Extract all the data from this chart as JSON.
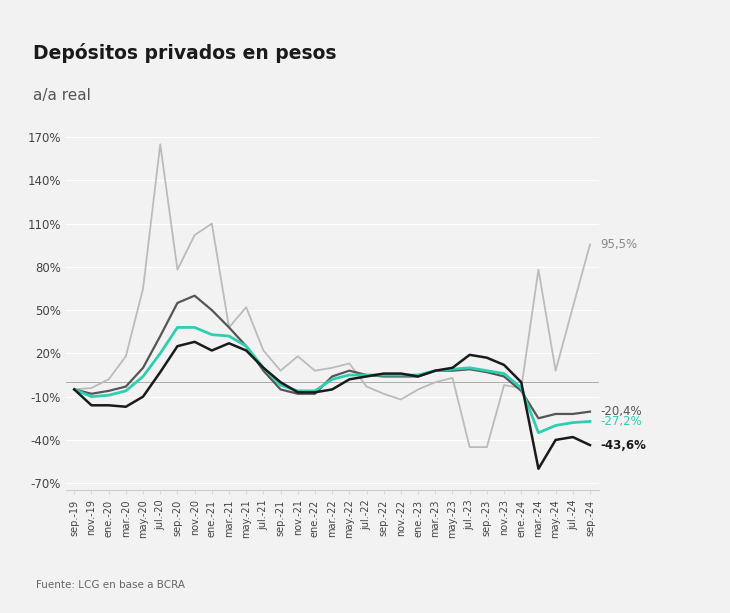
{
  "title": "Depósitos privados en pesos",
  "subtitle": "a/a real",
  "source": "Fuente: LCG en base a BCRA",
  "ylim": [
    -0.75,
    1.8
  ],
  "yticks": [
    -0.7,
    -0.4,
    -0.1,
    0.2,
    0.5,
    0.8,
    1.1,
    1.4,
    1.7
  ],
  "ytick_labels": [
    "-70%",
    "-40%",
    "-10%",
    "20%",
    "50%",
    "80%",
    "110%",
    "140%",
    "170%"
  ],
  "colors": {
    "plazo_fijo": "#1a1a1a",
    "a_la_vista": "#555555",
    "total": "#2ecfb1",
    "otros": "#bbbbbb"
  },
  "end_labels": {
    "a_la_vista": "-20,4%",
    "total": "-27,2%",
    "plazo_fijo": "-43,6%",
    "otros": "95,5%"
  },
  "x_labels": [
    "sep.-19",
    "nov.-19",
    "ene.-20",
    "mar.-20",
    "may.-20",
    "jul.-20",
    "sep.-20",
    "nov.-20",
    "ene.-21",
    "mar.-21",
    "may.-21",
    "jul.-21",
    "sep.-21",
    "nov.-21",
    "ene.-22",
    "mar.-22",
    "may.-22",
    "jul.-22",
    "sep.-22",
    "nov.-22",
    "ene.-23",
    "mar.-23",
    "may.-23",
    "jul.-23",
    "sep.-23",
    "nov.-23",
    "ene.-24",
    "mar.-24",
    "may.-24",
    "jul.-24",
    "sep.-24"
  ],
  "plazo_fijo": [
    -0.05,
    -0.16,
    -0.16,
    -0.17,
    -0.1,
    0.07,
    0.25,
    0.28,
    0.22,
    0.27,
    0.22,
    0.1,
    0.0,
    -0.07,
    -0.07,
    -0.05,
    0.02,
    0.04,
    0.06,
    0.06,
    0.04,
    0.08,
    0.1,
    0.19,
    0.17,
    0.12,
    0.0,
    -0.6,
    -0.4,
    -0.38,
    -0.436
  ],
  "a_la_vista": [
    -0.05,
    -0.08,
    -0.06,
    -0.03,
    0.1,
    0.32,
    0.55,
    0.6,
    0.5,
    0.38,
    0.25,
    0.08,
    -0.05,
    -0.08,
    -0.08,
    0.04,
    0.08,
    0.05,
    0.04,
    0.04,
    0.04,
    0.08,
    0.08,
    0.09,
    0.07,
    0.04,
    -0.06,
    -0.25,
    -0.22,
    -0.22,
    -0.204
  ],
  "total": [
    -0.05,
    -0.1,
    -0.09,
    -0.06,
    0.04,
    0.2,
    0.38,
    0.38,
    0.33,
    0.32,
    0.25,
    0.1,
    -0.02,
    -0.06,
    -0.06,
    0.02,
    0.05,
    0.05,
    0.05,
    0.05,
    0.05,
    0.08,
    0.09,
    0.1,
    0.08,
    0.06,
    -0.04,
    -0.35,
    -0.3,
    -0.28,
    -0.272
  ],
  "otros": [
    -0.05,
    -0.04,
    0.02,
    0.18,
    0.65,
    1.65,
    0.78,
    1.02,
    1.1,
    0.38,
    0.52,
    0.22,
    0.08,
    0.18,
    0.08,
    0.1,
    0.13,
    -0.03,
    -0.08,
    -0.12,
    -0.05,
    0.0,
    0.03,
    -0.45,
    -0.45,
    -0.02,
    -0.04,
    0.78,
    0.08,
    0.52,
    0.955
  ]
}
